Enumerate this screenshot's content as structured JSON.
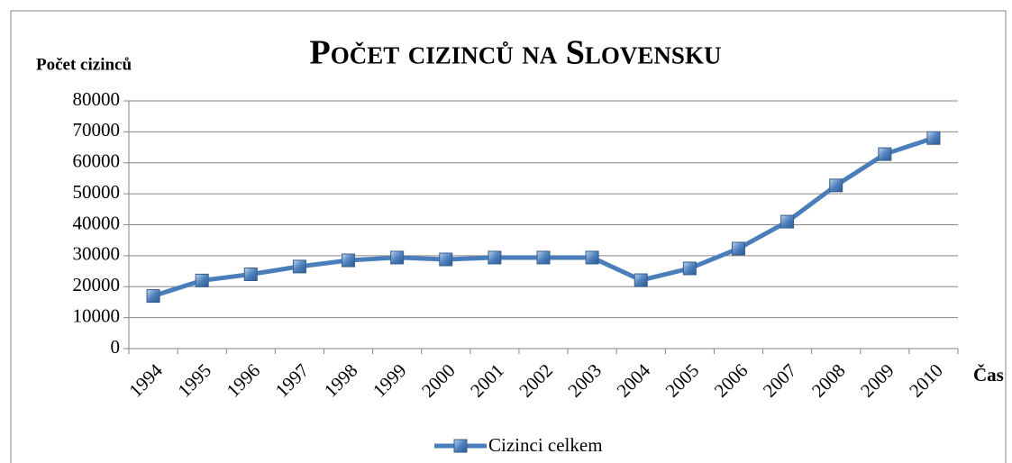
{
  "chart_data": {
    "type": "line",
    "title": "Počet cizinců na Slovensku",
    "y_label": "Počet cizinců",
    "x_label": "Čas",
    "categories": [
      "1994",
      "1995",
      "1996",
      "1997",
      "1998",
      "1999",
      "2000",
      "2001",
      "2002",
      "2003",
      "2004",
      "2005",
      "2006",
      "2007",
      "2008",
      "2009",
      "2010"
    ],
    "series": [
      {
        "name": "Cizinci celkem",
        "color": "#4a7ebb",
        "values": [
          17000,
          22000,
          24000,
          26500,
          28500,
          29400,
          28800,
          29400,
          29400,
          29400,
          22100,
          25900,
          32300,
          41000,
          52700,
          62800,
          68000
        ]
      }
    ],
    "ylim": [
      0,
      80000
    ],
    "yticks": [
      0,
      10000,
      20000,
      30000,
      40000,
      50000,
      60000,
      70000,
      80000
    ],
    "grid": true,
    "legend": "bottom"
  }
}
